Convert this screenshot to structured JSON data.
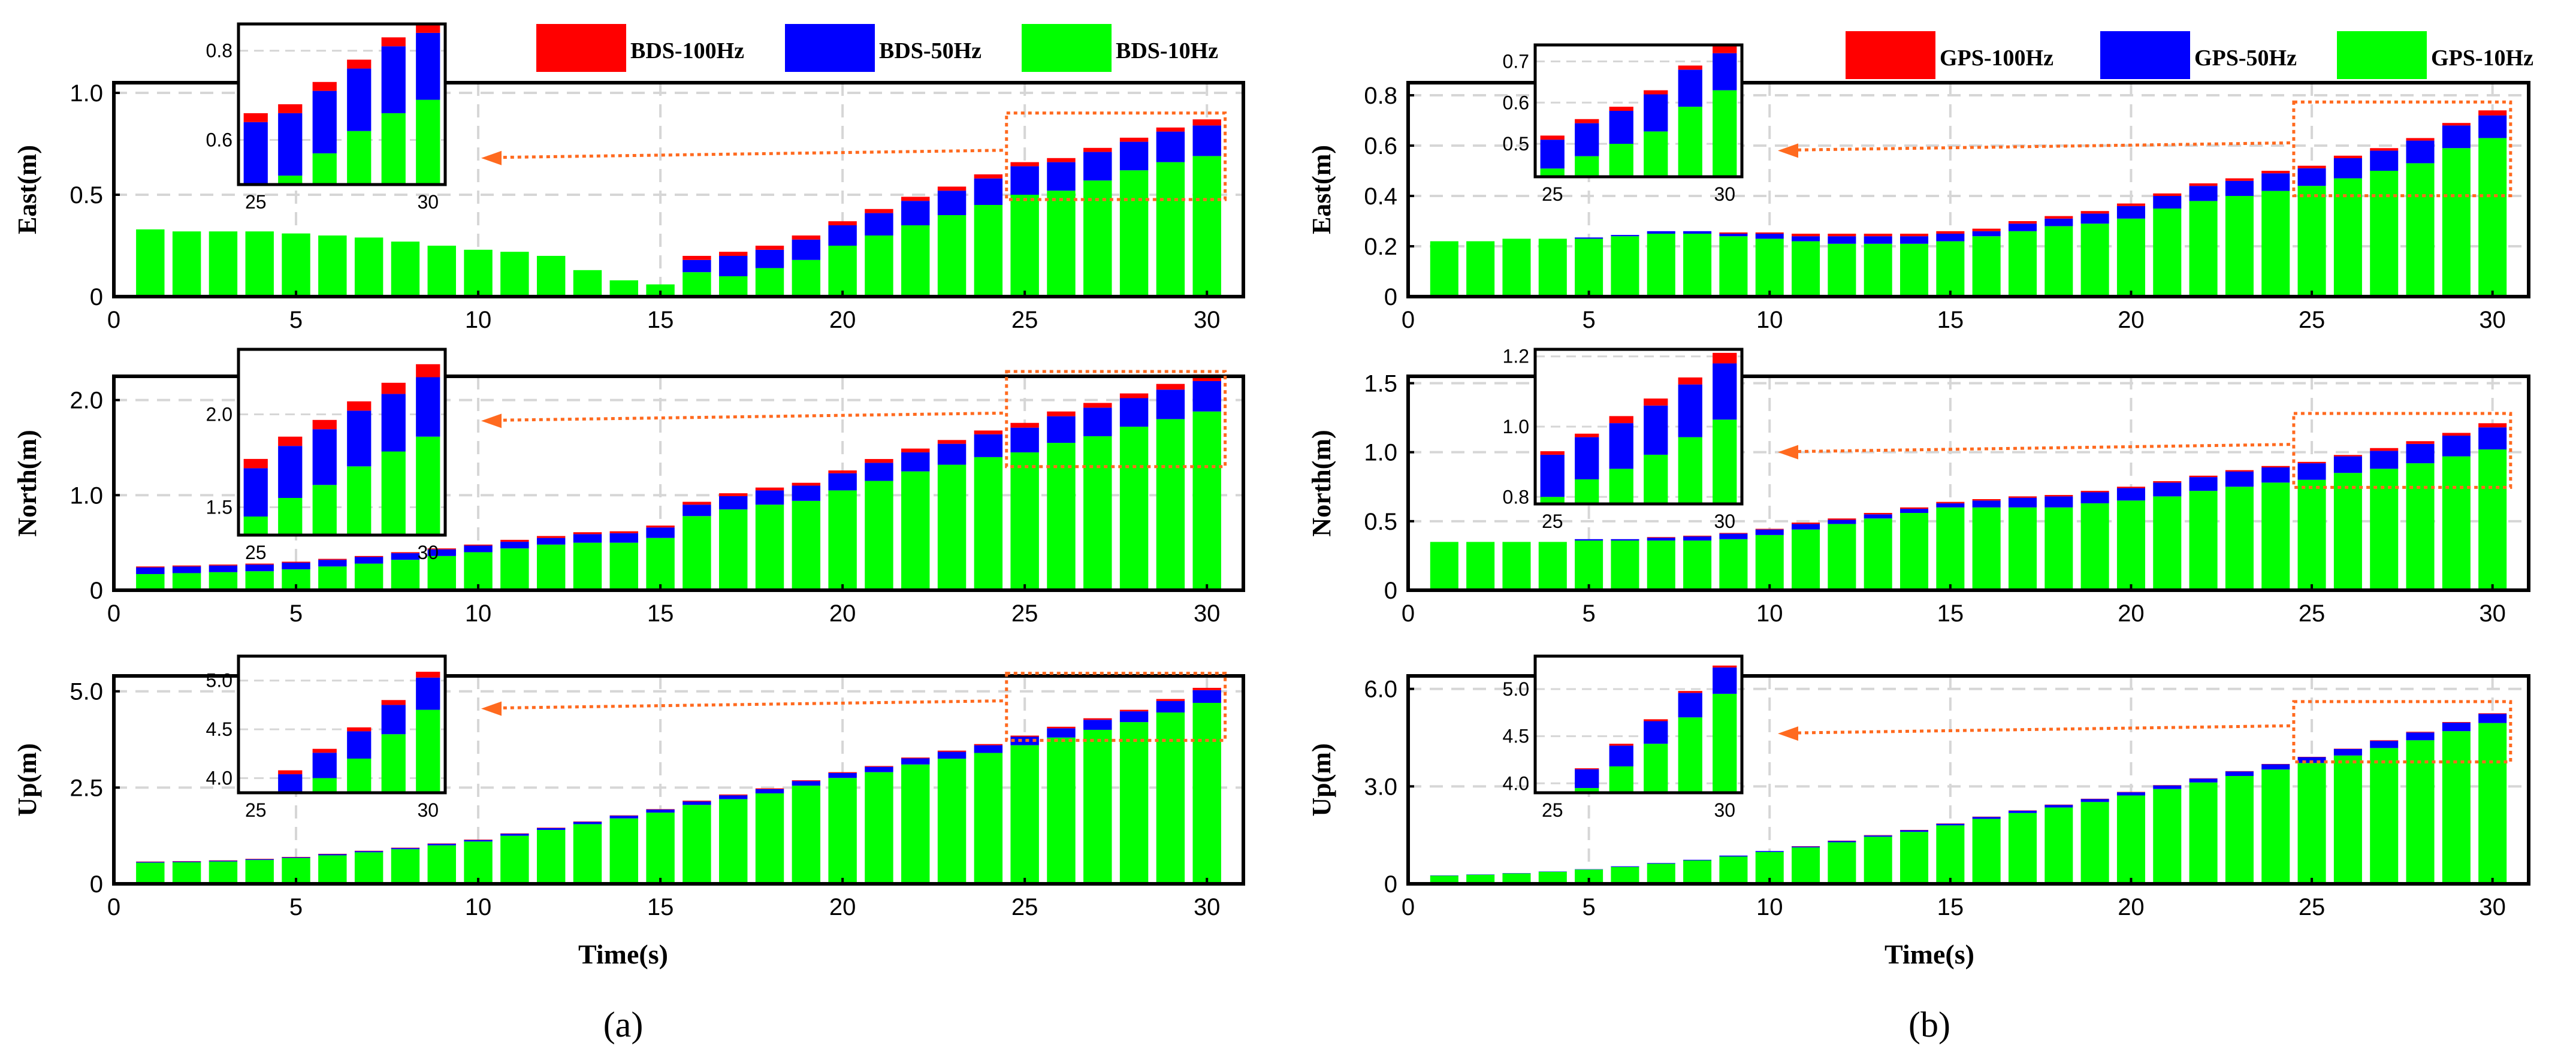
{
  "colors": {
    "hz100": "#ff0000",
    "hz50": "#0000ff",
    "hz10": "#00ff00",
    "zoom": "#ff6a1f"
  },
  "chart_data": [
    {
      "id": "a",
      "type": "bar",
      "caption": "(a)",
      "xlabel": "Time(s)",
      "legend": [
        "BDS-100Hz",
        "BDS-50Hz",
        "BDS-10Hz"
      ],
      "legend_placement": "top-right",
      "xlim": [
        0,
        31
      ],
      "xticks": [
        0,
        5,
        10,
        15,
        20,
        25,
        30
      ],
      "categories": [
        1,
        2,
        3,
        4,
        5,
        6,
        7,
        8,
        9,
        10,
        11,
        12,
        13,
        14,
        15,
        16,
        17,
        18,
        19,
        20,
        21,
        22,
        23,
        24,
        25,
        26,
        27,
        28,
        29,
        30
      ],
      "panels": [
        {
          "ylabel": "East(m)",
          "ylim": [
            0,
            1.05
          ],
          "yticks": [
            0,
            0.5,
            1.0
          ],
          "ytick_labels": [
            "0",
            "0.5",
            "1.0"
          ],
          "series": [
            {
              "name": "BDS-10Hz",
              "values": [
                0.33,
                0.32,
                0.32,
                0.32,
                0.31,
                0.3,
                0.29,
                0.27,
                0.25,
                0.23,
                0.22,
                0.2,
                0.13,
                0.08,
                0.06,
                0.12,
                0.1,
                0.14,
                0.18,
                0.25,
                0.3,
                0.35,
                0.4,
                0.45,
                0.5,
                0.52,
                0.57,
                0.62,
                0.66,
                0.69
              ]
            },
            {
              "name": "BDS-50Hz",
              "values": [
                0,
                0,
                0,
                0,
                0,
                0,
                0,
                0,
                0,
                0,
                0,
                0,
                0,
                0,
                0,
                0.06,
                0.1,
                0.09,
                0.1,
                0.1,
                0.11,
                0.12,
                0.12,
                0.13,
                0.14,
                0.14,
                0.14,
                0.14,
                0.15,
                0.15
              ]
            },
            {
              "name": "BDS-100Hz",
              "values": [
                0,
                0,
                0,
                0,
                0,
                0,
                0,
                0,
                0,
                0,
                0,
                0,
                0,
                0,
                0,
                0.02,
                0.02,
                0.02,
                0.02,
                0.02,
                0.02,
                0.02,
                0.02,
                0.02,
                0.02,
                0.02,
                0.02,
                0.02,
                0.02,
                0.03
              ]
            }
          ],
          "inset": {
            "ylim": [
              0.5,
              0.86
            ],
            "yticks": [
              0.6,
              0.8
            ],
            "ytick_labels": [
              "0.6",
              "0.8"
            ],
            "xtick_labels": [
              "25",
              "30"
            ]
          }
        },
        {
          "ylabel": "North(m)",
          "ylim": [
            0,
            2.25
          ],
          "yticks": [
            0,
            1.0,
            2.0
          ],
          "ytick_labels": [
            "0",
            "1.0",
            "2.0"
          ],
          "series": [
            {
              "name": "BDS-10Hz",
              "values": [
                0.17,
                0.18,
                0.19,
                0.2,
                0.22,
                0.25,
                0.28,
                0.32,
                0.36,
                0.4,
                0.44,
                0.48,
                0.5,
                0.5,
                0.55,
                0.78,
                0.85,
                0.9,
                0.94,
                1.05,
                1.15,
                1.25,
                1.32,
                1.4,
                1.45,
                1.55,
                1.62,
                1.72,
                1.8,
                1.88
              ]
            },
            {
              "name": "BDS-50Hz",
              "values": [
                0.07,
                0.07,
                0.07,
                0.07,
                0.07,
                0.07,
                0.07,
                0.07,
                0.07,
                0.07,
                0.07,
                0.07,
                0.09,
                0.1,
                0.11,
                0.12,
                0.14,
                0.15,
                0.16,
                0.18,
                0.19,
                0.2,
                0.22,
                0.24,
                0.26,
                0.28,
                0.3,
                0.3,
                0.31,
                0.32
              ]
            },
            {
              "name": "BDS-100Hz",
              "values": [
                0.01,
                0.01,
                0.01,
                0.01,
                0.01,
                0.01,
                0.01,
                0.01,
                0.01,
                0.01,
                0.02,
                0.02,
                0.02,
                0.02,
                0.02,
                0.03,
                0.03,
                0.03,
                0.03,
                0.03,
                0.04,
                0.04,
                0.04,
                0.04,
                0.05,
                0.05,
                0.05,
                0.05,
                0.06,
                0.07
              ]
            }
          ],
          "inset": {
            "ylim": [
              1.35,
              2.35
            ],
            "yticks": [
              1.5,
              2.0
            ],
            "ytick_labels": [
              "1.5",
              "2.0"
            ],
            "xtick_labels": [
              "25",
              "30"
            ]
          }
        },
        {
          "ylabel": "Up(m)",
          "ylim": [
            0,
            5.4
          ],
          "yticks": [
            0,
            2.5,
            5.0
          ],
          "ytick_labels": [
            "0",
            "2.5",
            "5.0"
          ],
          "series": [
            {
              "name": "BDS-10Hz",
              "values": [
                0.55,
                0.56,
                0.58,
                0.62,
                0.67,
                0.74,
                0.82,
                0.9,
                1.0,
                1.1,
                1.25,
                1.4,
                1.55,
                1.7,
                1.85,
                2.05,
                2.2,
                2.35,
                2.55,
                2.75,
                2.9,
                3.1,
                3.25,
                3.4,
                3.6,
                3.8,
                4.0,
                4.2,
                4.45,
                4.7
              ]
            },
            {
              "name": "BDS-50Hz",
              "values": [
                0.02,
                0.02,
                0.02,
                0.02,
                0.02,
                0.03,
                0.03,
                0.03,
                0.04,
                0.04,
                0.05,
                0.05,
                0.06,
                0.07,
                0.08,
                0.09,
                0.1,
                0.11,
                0.12,
                0.13,
                0.14,
                0.16,
                0.18,
                0.2,
                0.22,
                0.24,
                0.26,
                0.28,
                0.3,
                0.33
              ]
            },
            {
              "name": "BDS-100Hz",
              "values": [
                0.01,
                0.01,
                0.01,
                0.01,
                0.01,
                0.01,
                0.01,
                0.01,
                0.01,
                0.01,
                0.01,
                0.01,
                0.01,
                0.01,
                0.01,
                0.02,
                0.02,
                0.02,
                0.02,
                0.02,
                0.02,
                0.02,
                0.03,
                0.03,
                0.03,
                0.04,
                0.04,
                0.04,
                0.05,
                0.06
              ]
            }
          ],
          "inset": {
            "ylim": [
              3.85,
              5.25
            ],
            "yticks": [
              4.0,
              4.5,
              5.0
            ],
            "ytick_labels": [
              "4.0",
              "4.5",
              "5.0"
            ],
            "xtick_labels": [
              "25",
              "30"
            ]
          }
        }
      ]
    },
    {
      "id": "b",
      "type": "bar",
      "caption": "(b)",
      "xlabel": "Time(s)",
      "legend": [
        "GPS-100Hz",
        "GPS-50Hz",
        "GPS-10Hz"
      ],
      "legend_placement": "top-right",
      "xlim": [
        0,
        31
      ],
      "xticks": [
        0,
        5,
        10,
        15,
        20,
        25,
        30
      ],
      "categories": [
        1,
        2,
        3,
        4,
        5,
        6,
        7,
        8,
        9,
        10,
        11,
        12,
        13,
        14,
        15,
        16,
        17,
        18,
        19,
        20,
        21,
        22,
        23,
        24,
        25,
        26,
        27,
        28,
        29,
        30
      ],
      "panels": [
        {
          "ylabel": "East(m)",
          "ylim": [
            0,
            0.85
          ],
          "yticks": [
            0,
            0.2,
            0.4,
            0.6,
            0.8
          ],
          "ytick_labels": [
            "0",
            "0.2",
            "0.4",
            "0.6",
            "0.8"
          ],
          "series": [
            {
              "name": "GPS-10Hz",
              "values": [
                0.22,
                0.22,
                0.23,
                0.23,
                0.23,
                0.24,
                0.25,
                0.25,
                0.24,
                0.23,
                0.22,
                0.21,
                0.21,
                0.21,
                0.22,
                0.24,
                0.26,
                0.28,
                0.29,
                0.31,
                0.35,
                0.38,
                0.4,
                0.42,
                0.44,
                0.47,
                0.5,
                0.53,
                0.59,
                0.63
              ]
            },
            {
              "name": "GPS-50Hz",
              "values": [
                0,
                0,
                0,
                0,
                0.005,
                0.005,
                0.01,
                0.01,
                0.01,
                0.02,
                0.02,
                0.03,
                0.03,
                0.03,
                0.03,
                0.02,
                0.03,
                0.03,
                0.04,
                0.05,
                0.05,
                0.06,
                0.06,
                0.07,
                0.07,
                0.08,
                0.08,
                0.09,
                0.09,
                0.09
              ]
            },
            {
              "name": "GPS-100Hz",
              "values": [
                0,
                0,
                0,
                0,
                0,
                0,
                0,
                0,
                0.005,
                0.005,
                0.01,
                0.01,
                0.01,
                0.01,
                0.01,
                0.01,
                0.01,
                0.01,
                0.01,
                0.01,
                0.01,
                0.01,
                0.01,
                0.01,
                0.01,
                0.01,
                0.01,
                0.01,
                0.01,
                0.02
              ]
            }
          ],
          "inset": {
            "ylim": [
              0.42,
              0.74
            ],
            "yticks": [
              0.5,
              0.6,
              0.7
            ],
            "ytick_labels": [
              "0.5",
              "0.6",
              "0.7"
            ],
            "xtick_labels": [
              "25",
              "30"
            ]
          }
        },
        {
          "ylabel": "North(m)",
          "ylim": [
            0,
            1.55
          ],
          "yticks": [
            0,
            0.5,
            1.0,
            1.5
          ],
          "ytick_labels": [
            "0",
            "0.5",
            "1.0",
            "1.5"
          ],
          "series": [
            {
              "name": "GPS-10Hz",
              "values": [
                0.35,
                0.35,
                0.35,
                0.35,
                0.36,
                0.36,
                0.36,
                0.36,
                0.37,
                0.4,
                0.44,
                0.48,
                0.52,
                0.56,
                0.6,
                0.6,
                0.6,
                0.6,
                0.63,
                0.65,
                0.68,
                0.72,
                0.75,
                0.78,
                0.8,
                0.85,
                0.88,
                0.92,
                0.97,
                1.02
              ]
            },
            {
              "name": "GPS-50Hz",
              "values": [
                0,
                0,
                0,
                0,
                0.01,
                0.01,
                0.02,
                0.03,
                0.04,
                0.04,
                0.04,
                0.03,
                0.03,
                0.03,
                0.03,
                0.05,
                0.07,
                0.08,
                0.08,
                0.09,
                0.1,
                0.1,
                0.11,
                0.11,
                0.12,
                0.12,
                0.13,
                0.14,
                0.15,
                0.16
              ]
            },
            {
              "name": "GPS-100Hz",
              "values": [
                0,
                0,
                0,
                0,
                0,
                0,
                0.005,
                0.005,
                0.005,
                0.005,
                0.01,
                0.01,
                0.01,
                0.01,
                0.01,
                0.01,
                0.01,
                0.01,
                0.01,
                0.01,
                0.01,
                0.01,
                0.01,
                0.01,
                0.01,
                0.01,
                0.02,
                0.02,
                0.02,
                0.03
              ]
            }
          ],
          "inset": {
            "ylim": [
              0.78,
              1.22
            ],
            "yticks": [
              0.8,
              1.0,
              1.2
            ],
            "ytick_labels": [
              "0.8",
              "1.0",
              "1.2"
            ],
            "xtick_labels": [
              "25",
              "30"
            ]
          }
        },
        {
          "ylabel": "Up(m)",
          "ylim": [
            0,
            6.4
          ],
          "yticks": [
            0,
            3.0,
            6.0
          ],
          "ytick_labels": [
            "0",
            "3.0",
            "6.0"
          ],
          "series": [
            {
              "name": "GPS-10Hz",
              "values": [
                0.25,
                0.28,
                0.32,
                0.37,
                0.44,
                0.52,
                0.62,
                0.72,
                0.84,
                0.98,
                1.12,
                1.28,
                1.45,
                1.6,
                1.8,
                2.0,
                2.18,
                2.35,
                2.52,
                2.72,
                2.92,
                3.12,
                3.32,
                3.52,
                3.72,
                3.95,
                4.18,
                4.42,
                4.7,
                4.95
              ]
            },
            {
              "name": "GPS-50Hz",
              "values": [
                0.01,
                0.01,
                0.01,
                0.01,
                0.01,
                0.02,
                0.02,
                0.02,
                0.03,
                0.03,
                0.03,
                0.04,
                0.04,
                0.05,
                0.05,
                0.06,
                0.07,
                0.08,
                0.09,
                0.1,
                0.11,
                0.12,
                0.14,
                0.16,
                0.18,
                0.2,
                0.22,
                0.24,
                0.26,
                0.28
              ]
            },
            {
              "name": "GPS-100Hz",
              "values": [
                0,
                0,
                0,
                0,
                0,
                0,
                0,
                0,
                0,
                0,
                0.01,
                0.01,
                0.01,
                0.01,
                0.01,
                0.01,
                0.01,
                0.01,
                0.01,
                0.01,
                0.01,
                0.01,
                0.01,
                0.01,
                0.01,
                0.01,
                0.02,
                0.02,
                0.02,
                0.02
              ]
            }
          ],
          "inset": {
            "ylim": [
              3.9,
              5.35
            ],
            "yticks": [
              4.0,
              4.5,
              5.0
            ],
            "ytick_labels": [
              "4.0",
              "4.5",
              "5.0"
            ],
            "xtick_labels": [
              "25",
              "30"
            ]
          }
        }
      ]
    }
  ]
}
